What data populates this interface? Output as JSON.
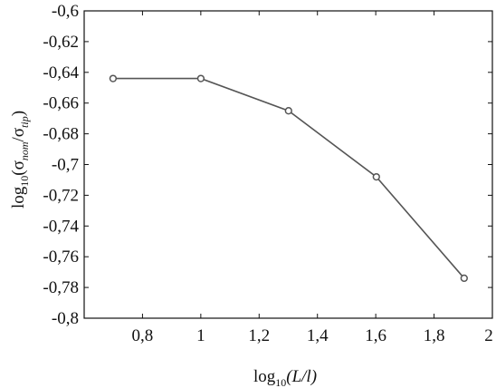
{
  "chart_data": {
    "type": "line",
    "title": "",
    "xlabel": {
      "prefix": "log",
      "subscript": "10",
      "body": "(L/l)"
    },
    "ylabel": {
      "prefix": "log",
      "subscript": "10",
      "open": "(σ",
      "sub1": "nom",
      "mid": "/σ",
      "sub2": "tip",
      "close": ")"
    },
    "xlim": [
      0.6,
      2.0
    ],
    "ylim": [
      -0.8,
      -0.6
    ],
    "xticks": [
      0.8,
      1.0,
      1.2,
      1.4,
      1.6,
      1.8,
      2.0
    ],
    "xtick_labels": [
      "0,8",
      "1",
      "1,2",
      "1,4",
      "1,6",
      "1,8",
      "2"
    ],
    "yticks": [
      -0.6,
      -0.62,
      -0.64,
      -0.66,
      -0.68,
      -0.7,
      -0.72,
      -0.74,
      -0.76,
      -0.78,
      -0.8
    ],
    "ytick_labels": [
      "-0,6",
      "-0,62",
      "-0,64",
      "-0,66",
      "-0,68",
      "-0,7",
      "-0,72",
      "-0,74",
      "-0,76",
      "-0,78",
      "-0,8"
    ],
    "grid": false,
    "series": [
      {
        "x": [
          0.699,
          1.0,
          1.301,
          1.602,
          1.903
        ],
        "y": [
          -0.644,
          -0.644,
          -0.665,
          -0.708,
          -0.774
        ],
        "color": "#555555",
        "marker": "circle"
      }
    ]
  }
}
